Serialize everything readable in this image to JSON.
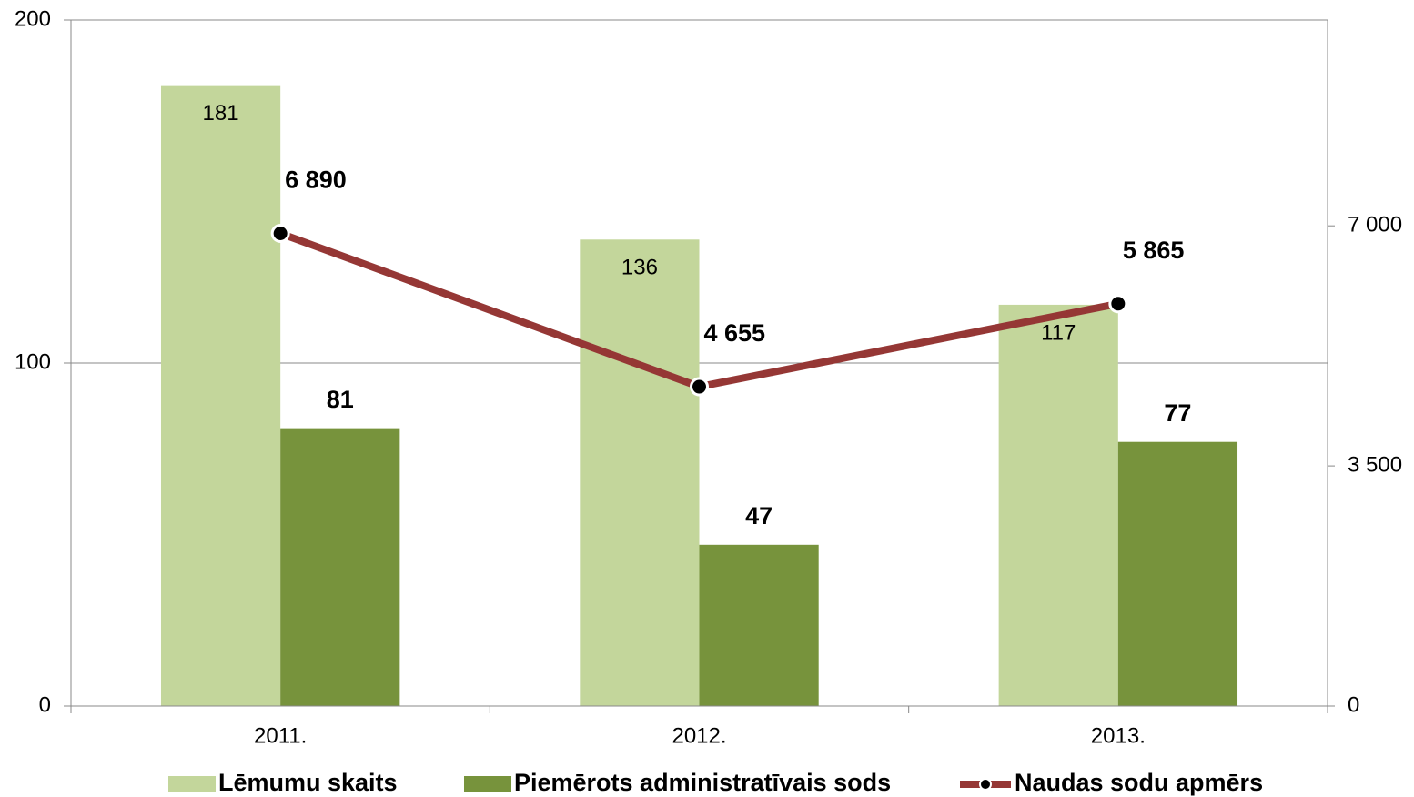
{
  "chart_data": {
    "type": "bar",
    "categories": [
      "2011.",
      "2012.",
      "2013."
    ],
    "series": [
      {
        "name": "Lēmumu skaits",
        "color": "#c3d69b",
        "type": "bar",
        "values": [
          181,
          136,
          117
        ]
      },
      {
        "name": "Piemērots administratīvais sods",
        "color": "#77933c",
        "type": "bar",
        "values": [
          81,
          47,
          77
        ]
      },
      {
        "name": "Naudas sodu apmērs",
        "color": "#953735",
        "type": "line",
        "axis": "y2",
        "values": [
          6890,
          4655,
          5865
        ],
        "value_labels": [
          "6 890",
          "4 655",
          "5 865"
        ]
      }
    ],
    "ylim": [
      0,
      200
    ],
    "yticks": [
      0,
      100,
      200
    ],
    "y2lim": [
      0,
      10000
    ],
    "y2ticks": [
      0,
      {
        "value": 3500,
        "label": "3 500"
      },
      {
        "value": 7000,
        "label": "7 000"
      }
    ],
    "grid": true,
    "legend": "bottom"
  }
}
